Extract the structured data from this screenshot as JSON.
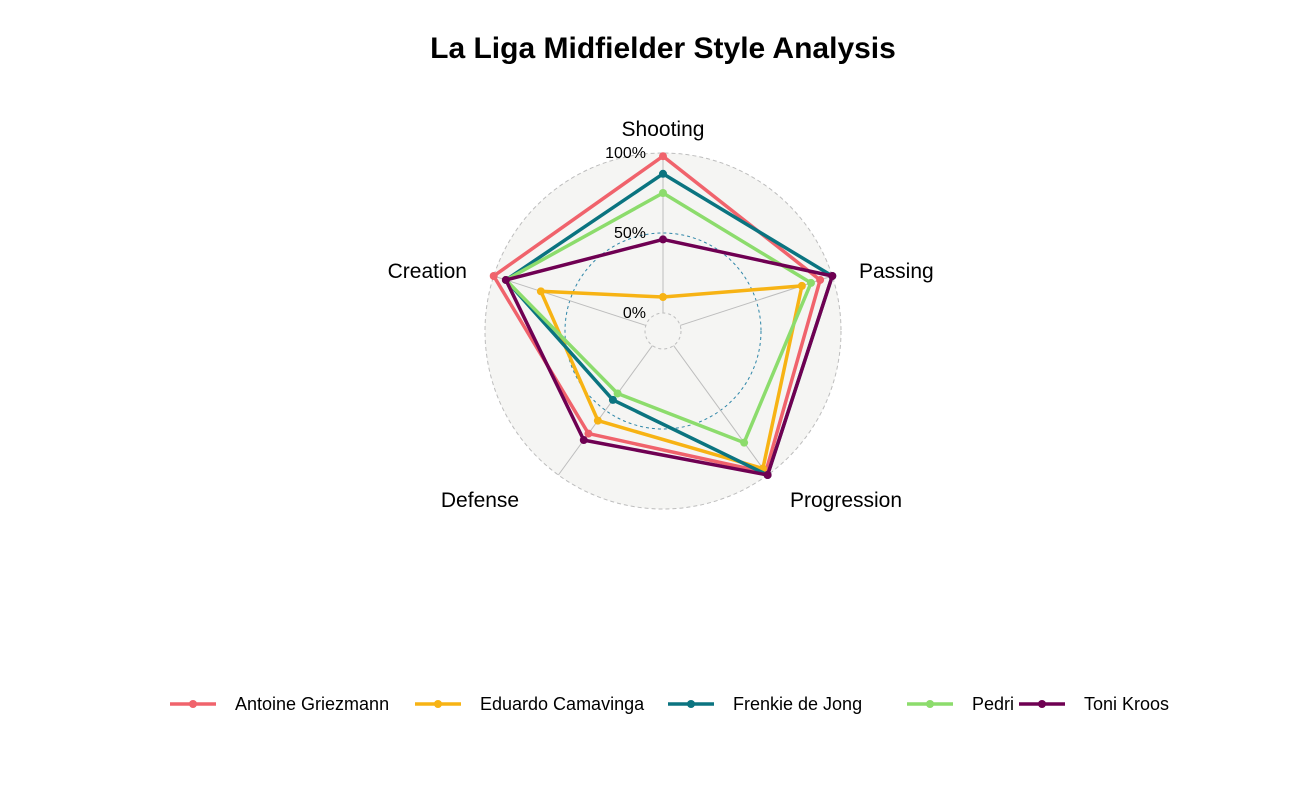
{
  "chart_data": {
    "type": "radar",
    "title": "La Liga Midfielder Style Analysis",
    "axes": [
      "Shooting",
      "Passing",
      "Progression",
      "Defense",
      "Creation"
    ],
    "range": [
      0,
      100
    ],
    "tick_labels": [
      "0%",
      "50%",
      "100%"
    ],
    "grid": true,
    "legend_position": "bottom",
    "series": [
      {
        "name": "Antoine Griezmann",
        "color": "#F0636C",
        "values": [
          98,
          92,
          98,
          68,
          100
        ]
      },
      {
        "name": "Eduardo Camavinga",
        "color": "#F7B314",
        "values": [
          10,
          80,
          95,
          58,
          69
        ]
      },
      {
        "name": "Frenkie de Jong",
        "color": "#0B7480",
        "values": [
          87,
          100,
          100,
          42,
          92
        ]
      },
      {
        "name": "Pedri",
        "color": "#8CDC6C",
        "values": [
          75,
          86,
          75,
          37,
          92
        ]
      },
      {
        "name": "Toni Kroos",
        "color": "#6F0052",
        "values": [
          46,
          100,
          100,
          73,
          92
        ]
      }
    ]
  }
}
